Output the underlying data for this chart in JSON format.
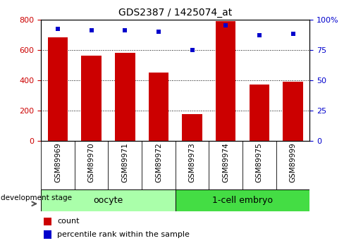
{
  "title": "GDS2387 / 1425074_at",
  "categories": [
    "GSM89969",
    "GSM89970",
    "GSM89971",
    "GSM89972",
    "GSM89973",
    "GSM89974",
    "GSM89975",
    "GSM89999"
  ],
  "bar_values": [
    680,
    560,
    580,
    450,
    175,
    790,
    370,
    390
  ],
  "percentile_values": [
    92,
    91,
    91,
    90,
    75,
    95,
    87,
    88
  ],
  "bar_color": "#CC0000",
  "percentile_color": "#0000CC",
  "left_ylim": [
    0,
    800
  ],
  "right_ylim": [
    0,
    100
  ],
  "left_yticks": [
    0,
    200,
    400,
    600,
    800
  ],
  "right_yticks": [
    0,
    25,
    50,
    75,
    100
  ],
  "right_yticklabels": [
    "0",
    "25",
    "50",
    "75",
    "100%"
  ],
  "group1_label": "oocyte",
  "group2_label": "1-cell embryo",
  "group1_color": "#AAFFAA",
  "group2_color": "#44DD44",
  "stage_label": "development stage",
  "legend_bar_label": "count",
  "legend_percentile_label": "percentile rank within the sample",
  "background_color": "#FFFFFF",
  "xlabels_bg_color": "#C8C8C8",
  "bar_width": 0.6
}
